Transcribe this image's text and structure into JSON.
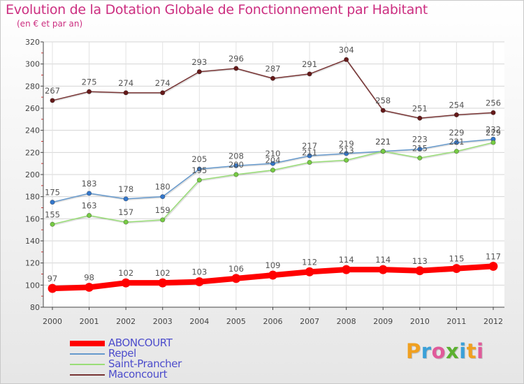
{
  "title": "Evolution de la Dotation Globale de Fonctionnement par Habitant",
  "subtitle": "(en € et par an)",
  "brand": {
    "text": "Proxiti",
    "letter_colors": [
      "#f0a020",
      "#3aa0d8",
      "#e05a9a",
      "#5bb030",
      "#3aa0d8",
      "#f0a020",
      "#e05a9a"
    ]
  },
  "chart_data": {
    "type": "line",
    "title": "Evolution de la Dotation Globale de Fonctionnement par Habitant",
    "subtitle": "(en € et par an)",
    "x": [
      "2000",
      "2001",
      "2002",
      "2003",
      "2004",
      "2005",
      "2006",
      "2007",
      "2008",
      "2009",
      "2010",
      "2011",
      "2012"
    ],
    "ylim": [
      80,
      320
    ],
    "yticks": [
      80,
      100,
      120,
      140,
      160,
      180,
      200,
      220,
      240,
      260,
      280,
      300,
      320
    ],
    "grid": true,
    "legend_position": "bottom-left",
    "series": [
      {
        "name": "ABONCOURT",
        "color": "#ff0000",
        "marker": "#ff0000",
        "width": "thick",
        "values": [
          97,
          98,
          102,
          102,
          103,
          106,
          109,
          112,
          114,
          114,
          113,
          115,
          117
        ]
      },
      {
        "name": "Repel",
        "color": "#6699cc",
        "marker": "#3377cc",
        "width": "thin",
        "values": [
          175,
          183,
          178,
          180,
          205,
          208,
          210,
          217,
          219,
          221,
          223,
          229,
          232
        ]
      },
      {
        "name": "Saint-Prancher",
        "color": "#99dd77",
        "marker": "#77cc44",
        "width": "thin",
        "values": [
          155,
          163,
          157,
          159,
          195,
          200,
          204,
          211,
          213,
          221,
          215,
          221,
          229
        ]
      },
      {
        "name": "Maconcourt",
        "color": "#773333",
        "marker": "#661a1a",
        "width": "thin",
        "values": [
          267,
          275,
          274,
          274,
          293,
          296,
          287,
          291,
          304,
          258,
          251,
          254,
          256
        ]
      }
    ]
  }
}
